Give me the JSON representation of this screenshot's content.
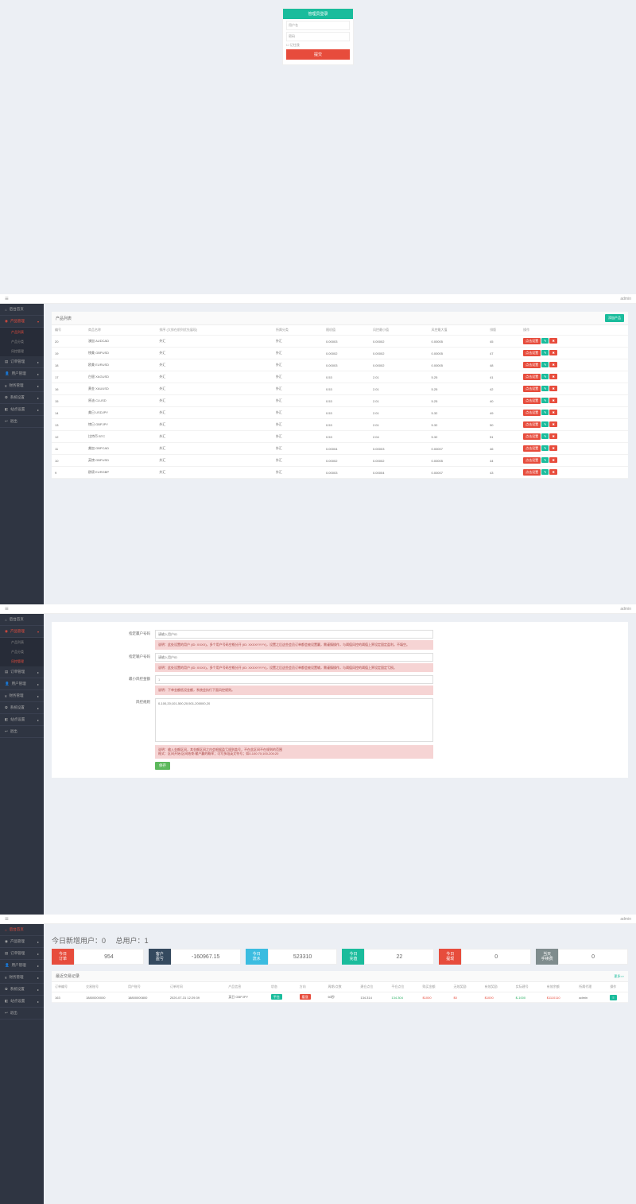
{
  "login": {
    "title": "管理员登录",
    "user_placeholder": "用户名",
    "pass_placeholder": "密码",
    "remember": "记住我",
    "submit": "提交"
  },
  "topbar": {
    "admin": "admin"
  },
  "sidebar_a": {
    "home": "后台首页",
    "product": "产品管理",
    "sub1": "产品列表",
    "sub2": "产品分类",
    "sub3": "风控管理",
    "order": "订单管理",
    "user": "用户管理",
    "finance": "财务管理",
    "system": "系统设置",
    "site": "站点设置",
    "logout": "退出"
  },
  "product_list": {
    "title": "产品列表",
    "add_btn": "添加产品",
    "columns": [
      "编号",
      "商品名称",
      "排序 (大排在前列优先展现)",
      "所属分类",
      "随机值",
      "风控最小值",
      "风控最大值",
      "排版",
      "操作"
    ],
    "rows": [
      [
        "20",
        "澳加 AUDCAD",
        "外汇",
        "外汇",
        "0.00003",
        "0.00002",
        "0.00005",
        "45"
      ],
      [
        "19",
        "镑美 GBPUSD",
        "外汇",
        "外汇",
        "0.00002",
        "0.00002",
        "0.00005",
        "47"
      ],
      [
        "18",
        "欧美 EURUSD",
        "外汇",
        "外汇",
        "0.00003",
        "0.00002",
        "0.00005",
        "48"
      ],
      [
        "17",
        "白银 XAGUSD",
        "外汇",
        "外汇",
        "0.53",
        "2.01",
        "5.25",
        "41"
      ],
      [
        "16",
        "黄金 XAUUSD",
        "外汇",
        "外汇",
        "0.53",
        "2.01",
        "5.25",
        "42"
      ],
      [
        "15",
        "原油 CLUSD",
        "外汇",
        "外汇",
        "0.53",
        "2.01",
        "5.25",
        "40"
      ],
      [
        "14",
        "美日 USDJPY",
        "外汇",
        "外汇",
        "0.53",
        "2.01",
        "5.32",
        "49"
      ],
      [
        "13",
        "镑日 GBPJPY",
        "外汇",
        "外汇",
        "0.53",
        "2.01",
        "5.32",
        "50"
      ],
      [
        "12",
        "比特币 BTC",
        "外汇",
        "外汇",
        "0.53",
        "2.04",
        "5.32",
        "51"
      ],
      [
        "11",
        "美加 GBPCAD",
        "外汇",
        "外汇",
        "0.00004",
        "0.00003",
        "0.00007",
        "46"
      ],
      [
        "10",
        "英镑 GBPUSD",
        "外汇",
        "外汇",
        "0.00002",
        "0.00002",
        "0.00005",
        "44"
      ],
      [
        "9",
        "欧磅 EURGBP",
        "外汇",
        "外汇",
        "0.00003",
        "0.00004",
        "0.00007",
        "43"
      ]
    ],
    "act_edit": "点击设置"
  },
  "risk_form": {
    "f1_label": "指定赢户号码",
    "f1_placeholder": "请输入用户ID",
    "f1_hint": "说明：此处设置的用户 (ID: XXXX)，多个用户号码空格分开 (ID: XXXXYYYY)，设置之后这些会员订单都会被设置赢，需谨慎操作，与阈值风控的阈值上界设定固定盈利。不填空。",
    "f2_label": "指定输户号码",
    "f2_placeholder": "请输入用户ID",
    "f2_hint": "说明：此处设置的用户 (ID: XXXX)，多个用户号码空格分开 (ID: XXXXYYYY)，设置之后这些会员订单都会被设置输，需谨慎操作，与阈值风控的阈值上界设定固定亏损。",
    "f3_label": "最小风控金额",
    "f3_value": "1",
    "f3_hint": "说明：下单金额低设金额，系统会执行下面风控规则。",
    "f4_label": "风控规则",
    "f4_value": "0-100,20;101-500,20;501-200000,20",
    "f4_hint1": "说明：输入金额区间，其金额区间之内会根据盈亏规则盖号，不在此区间不在规则的范围",
    "f4_hint2": "格式：区间开始:区间结束:输户赢的概率；可写多段英文符号；如0-100:70;100-200:20",
    "save": "保存"
  },
  "dashboard": {
    "new_users_label": "今日新增用户：",
    "new_users": "0",
    "total_users_label": "总用户：",
    "total_users": "1",
    "stats": [
      {
        "label": "今日\n订单",
        "value": "954",
        "color": "c-red"
      },
      {
        "label": "客户\n盈亏",
        "value": "-160967.15",
        "color": "c-dark"
      },
      {
        "label": "今日\n流水",
        "value": "523310",
        "color": "c-cyan"
      },
      {
        "label": "今日\n充值",
        "value": "22",
        "color": "c-teal"
      },
      {
        "label": "今日\n提现",
        "value": "0",
        "color": "c-red"
      },
      {
        "label": "当天\n手续费",
        "value": "0",
        "color": "c-gray"
      }
    ],
    "recent_title": "最近交易记录",
    "more": "更多>>",
    "columns": [
      "订单编号",
      "交易账号",
      "用户账号",
      "订单时间",
      "产品信息",
      "状态",
      "方向",
      "周期/点数",
      "建仓点位",
      "平仓点位",
      "购买金额",
      "无效奖励",
      "有效奖励",
      "实际建号",
      "有效余额",
      "所属代理",
      "操作"
    ],
    "row": {
      "id": "163",
      "acc": "18800000000",
      "user": "18800000800",
      "time": "2020-07-31 12:29:39",
      "prod": "英日 GBPJPY",
      "status": "平仓",
      "dir": "看涨",
      "period": "60秒",
      "open": "134.314",
      "close": "134.304",
      "amt": "$1000",
      "inv": "$0",
      "val": "$1000",
      "actual": "$-1000",
      "balance": "$1110110",
      "agent": "admin"
    }
  }
}
